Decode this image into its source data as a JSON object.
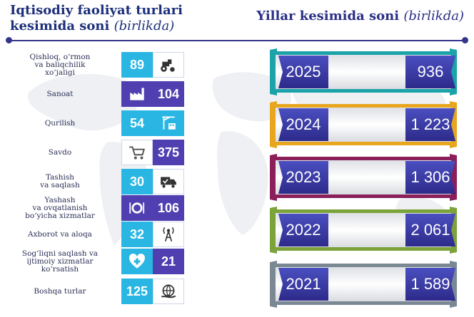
{
  "header": {
    "left_title_line1": "Iqtisodiy faoliyat turlari",
    "left_title_line2": "kesimida soni",
    "left_unit": "(birlikda)",
    "right_title": "Yillar kesimida soni",
    "right_unit": "(birlikda)"
  },
  "colors": {
    "title": "#1c2f7a",
    "cyan": "#29b6e3",
    "purple": "#4f3fb0",
    "ribbon_2025": "#1aa3a8",
    "ribbon_2024": "#e8a61e",
    "ribbon_2023": "#8a1f5a",
    "ribbon_2022": "#7ca23a",
    "ribbon_2021": "#7a8894"
  },
  "icons": [
    "tractor-icon",
    "factory-icon",
    "crane-building-icon",
    "shopping-cart-icon",
    "delivery-truck-icon",
    "plate-cutlery-icon",
    "antenna-tower-icon",
    "heart-cross-icon",
    "globe-hand-icon"
  ],
  "chart_data": [
    {
      "type": "table",
      "title": "Iqtisodiy faoliyat turlari kesimida soni (birlikda)",
      "categories": [
        "Qishloq, o‘rmon va baliqchilik xo‘jaligi",
        "Sanoat",
        "Qurilish",
        "Savdo",
        "Tashish va saqlash",
        "Yashash va ovqatlanish bo‘yicha xizmatlar",
        "Axborot va aloqa",
        "Sog‘liqni saqlash va ijtimoiy xizmatlar ko‘rsatish",
        "Boshqa turlar"
      ],
      "label_lines": [
        [
          "Qishloq, o‘rmon",
          "va baliqchilik",
          "xo‘jaligi"
        ],
        [
          "Sanoat"
        ],
        [
          "Qurilish"
        ],
        [
          "Savdo"
        ],
        [
          "Tashish",
          "va saqlash"
        ],
        [
          "Yashash",
          "va ovqatlanish",
          "bo‘yicha xizmatlar"
        ],
        [
          "Axborot va aloqa"
        ],
        [
          "Sog‘liqni saqlash va",
          "ijtimoiy xizmatlar",
          "ko‘rsatish"
        ],
        [
          "Boshqa turlar"
        ]
      ],
      "values": [
        89,
        104,
        54,
        375,
        30,
        106,
        32,
        21,
        125
      ],
      "value_colors": [
        "cyan",
        "purple",
        "cyan",
        "purple",
        "cyan",
        "purple",
        "cyan",
        "purple",
        "cyan"
      ]
    },
    {
      "type": "table",
      "title": "Yillar kesimida soni (birlikda)",
      "x": [
        "2025",
        "2024",
        "2023",
        "2022",
        "2021"
      ],
      "values": [
        936,
        1223,
        1306,
        2061,
        1589
      ],
      "value_labels": [
        "936",
        "1 223",
        "1 306",
        "2 061",
        "1 589"
      ]
    }
  ]
}
